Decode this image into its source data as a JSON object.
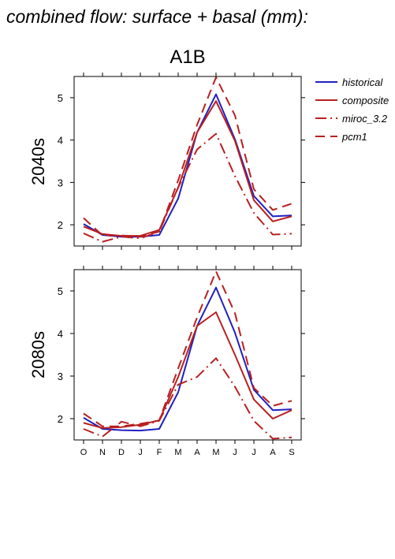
{
  "title": "combined flow: surface + basal (mm):",
  "subtitle": "A1B",
  "colors": {
    "historical": "#2020c0",
    "scenario": "#b82020"
  },
  "legend": [
    "historical",
    "composite",
    "miroc_3.2",
    "pcm1"
  ],
  "chart_data": [
    {
      "type": "line",
      "ylabel": "2040s",
      "categories": [
        "O",
        "N",
        "D",
        "J",
        "F",
        "M",
        "A",
        "M",
        "J",
        "J",
        "A",
        "S"
      ],
      "ylim": [
        1.5,
        5.5
      ],
      "yticks": [
        2,
        3,
        4,
        5
      ],
      "series": [
        {
          "name": "historical",
          "values": [
            2.02,
            1.76,
            1.72,
            1.72,
            1.76,
            2.62,
            4.18,
            5.08,
            4.02,
            2.68,
            2.2,
            2.22
          ]
        },
        {
          "name": "composite",
          "values": [
            1.96,
            1.78,
            1.74,
            1.74,
            1.88,
            2.88,
            4.18,
            4.92,
            3.98,
            2.58,
            2.08,
            2.2
          ]
        },
        {
          "name": "miroc_3.2",
          "values": [
            1.8,
            1.6,
            1.72,
            1.68,
            1.84,
            2.88,
            3.78,
            4.15,
            3.15,
            2.28,
            1.77,
            1.79
          ]
        },
        {
          "name": "pcm1",
          "values": [
            2.16,
            1.75,
            1.75,
            1.72,
            1.84,
            3.05,
            4.36,
            5.48,
            4.58,
            2.84,
            2.35,
            2.5
          ]
        }
      ]
    },
    {
      "type": "line",
      "ylabel": "2080s",
      "categories": [
        "O",
        "N",
        "D",
        "J",
        "F",
        "M",
        "A",
        "M",
        "J",
        "J",
        "A",
        "S"
      ],
      "ylim": [
        1.5,
        5.5
      ],
      "yticks": [
        2,
        3,
        4,
        5
      ],
      "series": [
        {
          "name": "historical",
          "values": [
            2.02,
            1.76,
            1.73,
            1.72,
            1.76,
            2.62,
            4.18,
            5.08,
            4.02,
            2.68,
            2.2,
            2.22
          ]
        },
        {
          "name": "composite",
          "values": [
            1.9,
            1.78,
            1.8,
            1.86,
            1.96,
            2.98,
            4.18,
            4.5,
            3.5,
            2.45,
            2.0,
            2.2
          ]
        },
        {
          "name": "miroc_3.2",
          "values": [
            1.76,
            1.58,
            1.93,
            1.82,
            1.95,
            2.8,
            2.98,
            3.42,
            2.75,
            1.95,
            1.53,
            1.56
          ]
        },
        {
          "name": "pcm1",
          "values": [
            2.12,
            1.82,
            1.82,
            1.88,
            1.96,
            3.18,
            4.38,
            5.46,
            4.48,
            2.72,
            2.3,
            2.42
          ]
        }
      ]
    }
  ]
}
